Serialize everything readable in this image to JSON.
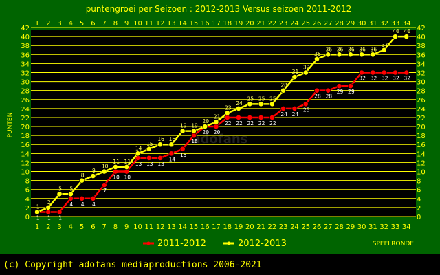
{
  "chart_data": {
    "type": "line",
    "title": "puntengroei per Seizoen : 2012-2013 Versus seizoen 2011-2012",
    "ylabel": "PUNTEN",
    "xlabel": "SPEELRONDE",
    "ylim": [
      0,
      42
    ],
    "yticks": [
      0,
      2,
      4,
      6,
      8,
      10,
      12,
      14,
      16,
      18,
      20,
      22,
      24,
      26,
      28,
      30,
      32,
      34,
      36,
      38,
      40,
      42
    ],
    "x": [
      1,
      2,
      3,
      4,
      5,
      6,
      7,
      8,
      9,
      10,
      11,
      12,
      13,
      14,
      15,
      16,
      17,
      18,
      19,
      20,
      21,
      22,
      23,
      24,
      25,
      26,
      27,
      28,
      29,
      30,
      31,
      32,
      33,
      34
    ],
    "grid": true,
    "series": [
      {
        "name": "2011-2012",
        "color": "#ff0000",
        "values": [
          1,
          1,
          1,
          4,
          4,
          4,
          7,
          10,
          10,
          13,
          13,
          13,
          14,
          15,
          18,
          20,
          20,
          22,
          22,
          22,
          22,
          22,
          24,
          24,
          25,
          28,
          28,
          29,
          29,
          32,
          32,
          32,
          32,
          32
        ]
      },
      {
        "name": "2012-2013",
        "color": "#ffff00",
        "values": [
          1,
          2,
          5,
          5,
          8,
          9,
          10,
          11,
          11,
          14,
          15,
          16,
          16,
          19,
          19,
          20,
          21,
          23,
          24,
          25,
          25,
          25,
          28,
          31,
          32,
          35,
          36,
          36,
          36,
          36,
          36,
          37,
          40,
          40
        ]
      }
    ],
    "legend_position": "bottom",
    "data_labels": true
  },
  "watermark": "adofans",
  "copyright": "(c) Copyright adofans mediaproductions 2006-2021",
  "colors": {
    "background": "#000000",
    "plot_background": "#006400",
    "grid": "#ffff00",
    "frame": "#006400"
  }
}
